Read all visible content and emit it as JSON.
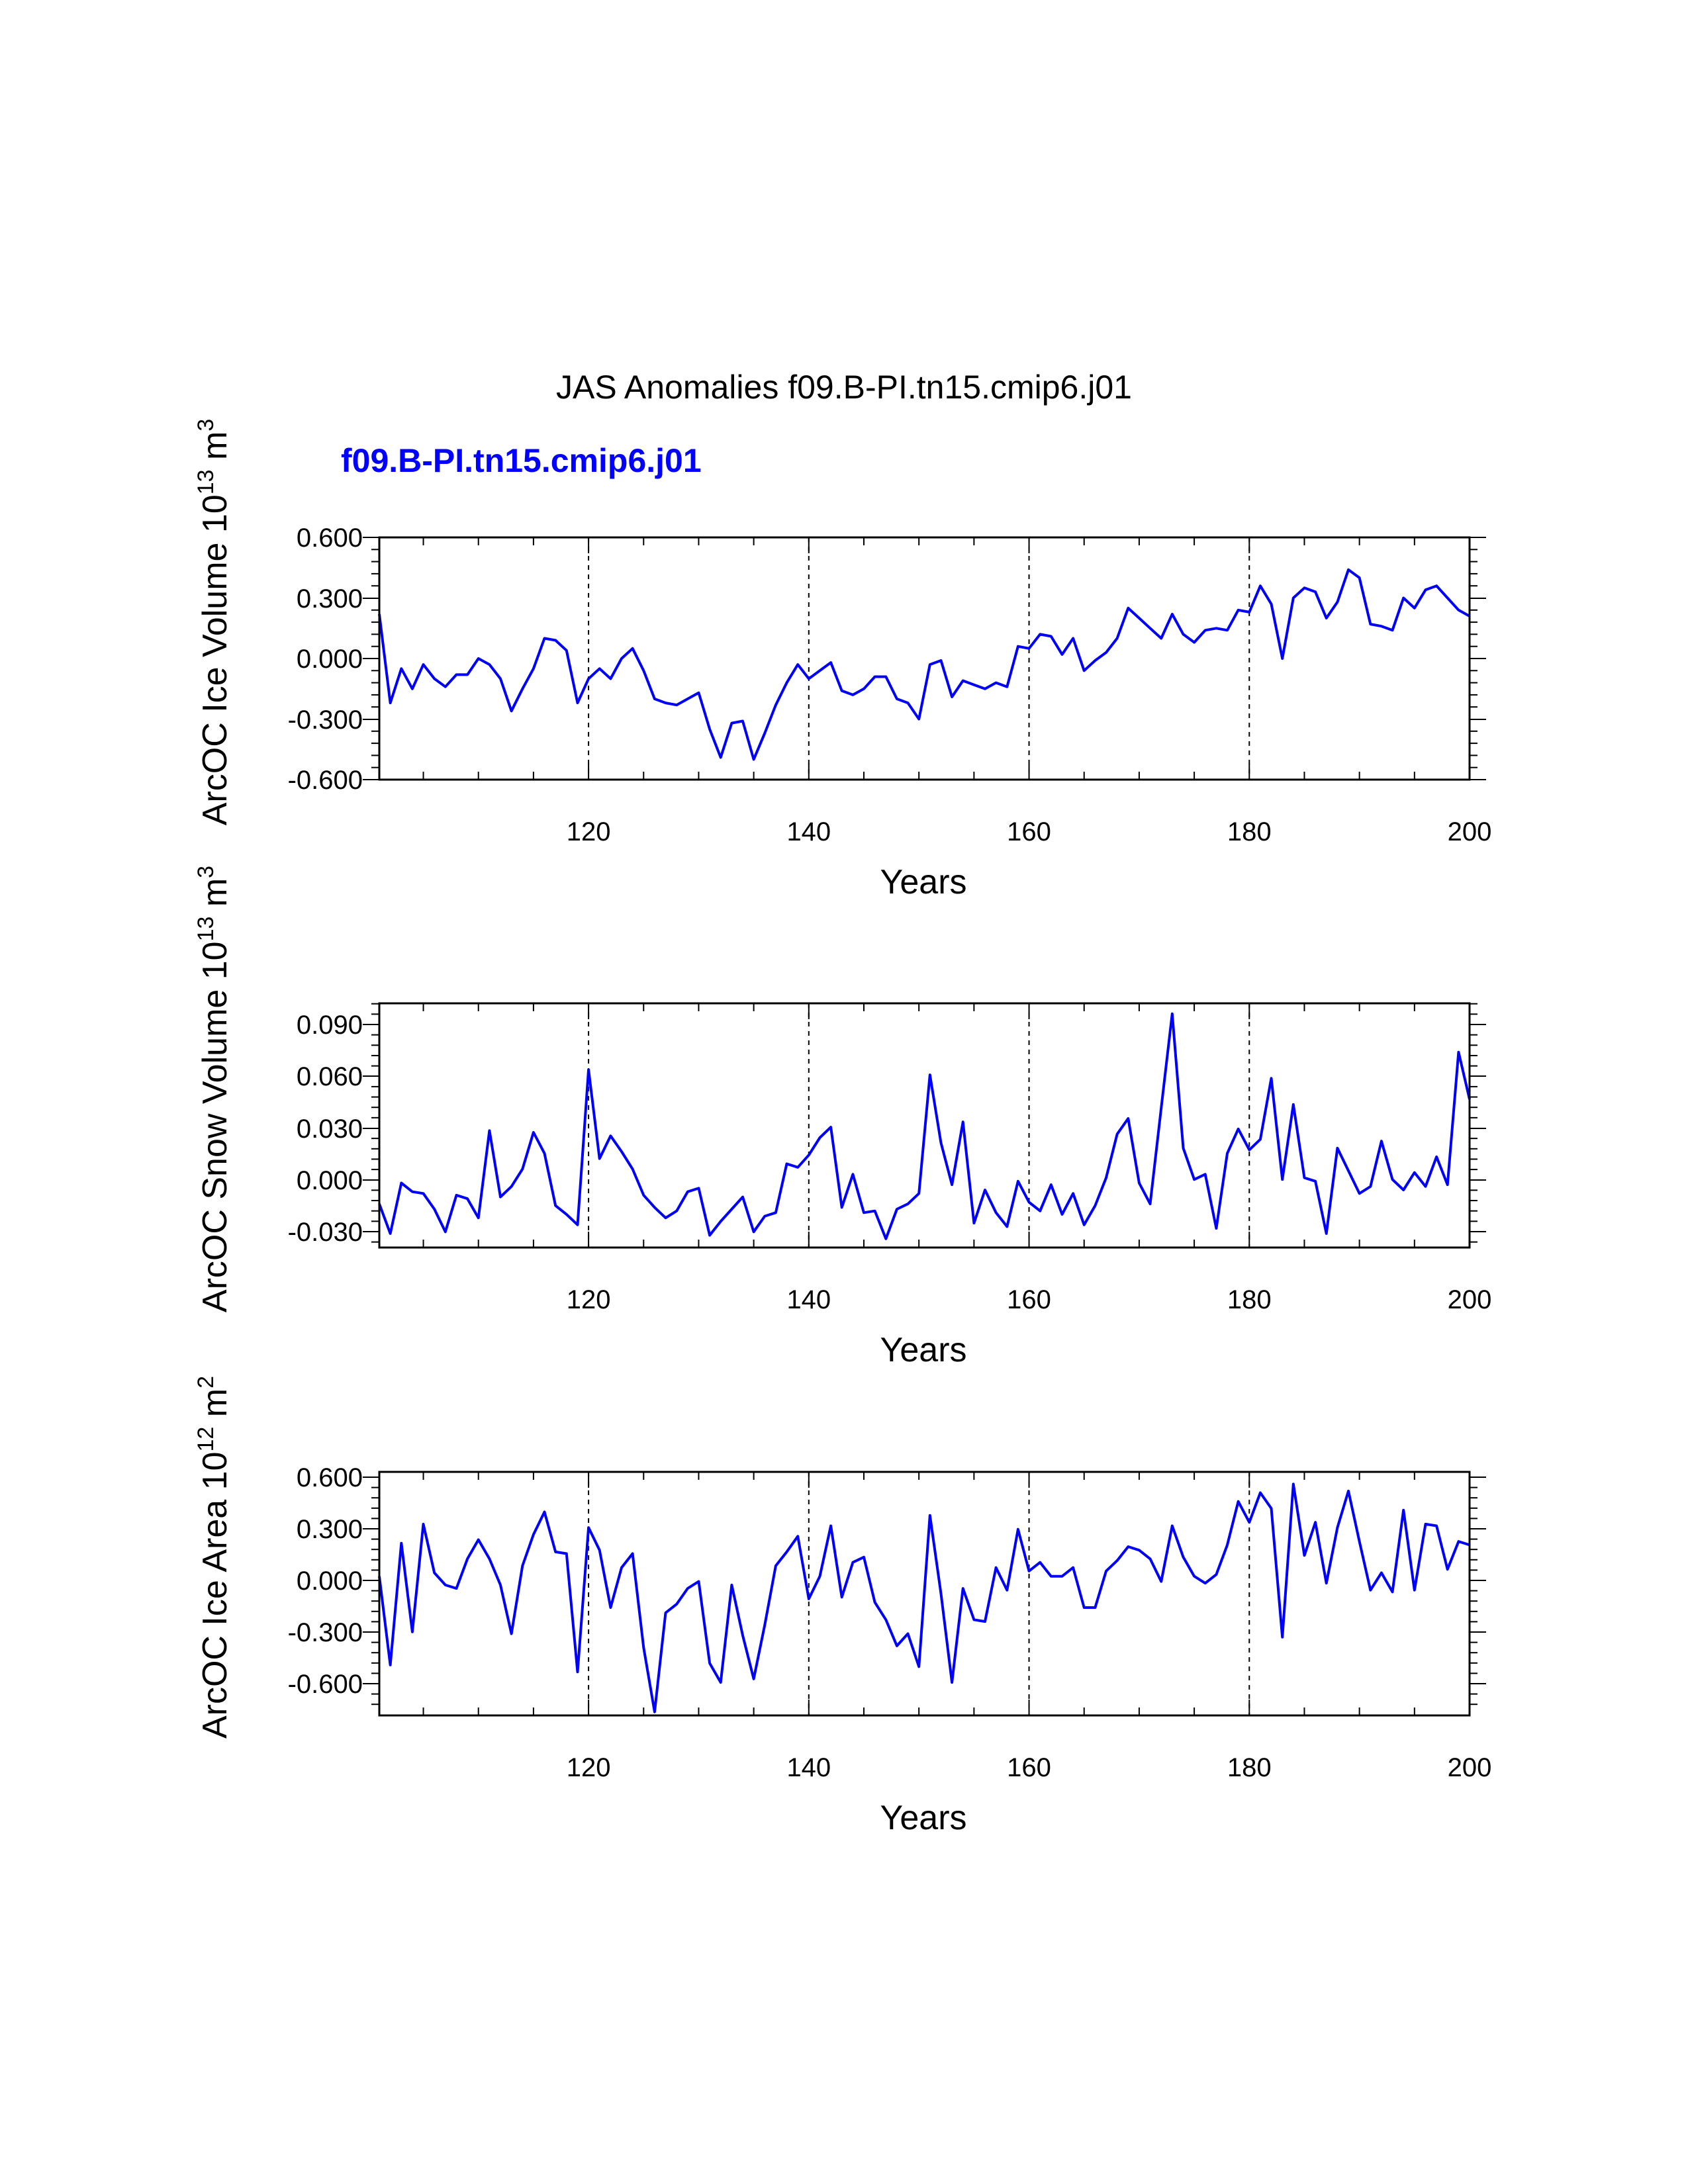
{
  "title": "JAS Anomalies f09.B-PI.tn15.cmip6.j01",
  "legend_label": "f09.B-PI.tn15.cmip6.j01",
  "colors": {
    "series": "#0000ff",
    "axis": "#000000",
    "reference_lines": "#000000"
  },
  "chart_data": [
    {
      "type": "line",
      "name": "ice-volume",
      "ylabel_main": "ArcOC Ice Volume 10",
      "ylabel_exp": "13",
      "ylabel_tail": " m",
      "ylabel_tail_exp": "3",
      "xlabel": "Years",
      "xlim": [
        101,
        200
      ],
      "ylim": [
        -0.6,
        0.6
      ],
      "xticks": [
        "120",
        "140",
        "160",
        "180",
        "200"
      ],
      "yticks": [
        "0.600",
        "0.300",
        "0.000",
        "-0.300",
        "-0.600"
      ],
      "reference_x": [
        120,
        140,
        160,
        180
      ],
      "series": [
        {
          "name": "f09.B-PI.tn15.cmip6.j01",
          "x_start": 101,
          "values": [
            0.22,
            -0.22,
            -0.05,
            -0.15,
            -0.03,
            -0.1,
            -0.14,
            -0.08,
            -0.08,
            0.0,
            -0.03,
            -0.1,
            -0.26,
            -0.15,
            -0.05,
            0.1,
            0.09,
            0.04,
            -0.22,
            -0.1,
            -0.05,
            -0.1,
            0.0,
            0.05,
            -0.06,
            -0.2,
            -0.22,
            -0.23,
            -0.2,
            -0.17,
            -0.35,
            -0.49,
            -0.32,
            -0.31,
            -0.5,
            -0.37,
            -0.23,
            -0.12,
            -0.03,
            -0.1,
            -0.06,
            -0.02,
            -0.16,
            -0.18,
            -0.15,
            -0.09,
            -0.09,
            -0.2,
            -0.22,
            -0.3,
            -0.03,
            -0.01,
            -0.19,
            -0.11,
            -0.13,
            -0.15,
            -0.12,
            -0.14,
            0.06,
            0.05,
            0.12,
            0.11,
            0.02,
            0.1,
            -0.06,
            -0.01,
            0.03,
            0.1,
            0.25,
            0.2,
            0.15,
            0.1,
            0.22,
            0.12,
            0.08,
            0.14,
            0.15,
            0.14,
            0.24,
            0.23,
            0.36,
            0.27,
            0.0,
            0.3,
            0.35,
            0.33,
            0.2,
            0.28,
            0.44,
            0.4,
            0.17,
            0.16,
            0.14,
            0.3,
            0.25,
            0.34,
            0.36,
            0.3,
            0.24,
            0.21
          ]
        }
      ]
    },
    {
      "type": "line",
      "name": "snow-volume",
      "ylabel_main": "ArcOC Snow Volume 10",
      "ylabel_exp": "13",
      "ylabel_tail": " m",
      "ylabel_tail_exp": "3",
      "xlabel": "Years",
      "xlim": [
        101,
        200
      ],
      "ylim": [
        -0.04,
        0.1
      ],
      "xticks": [
        "120",
        "140",
        "160",
        "180",
        "200"
      ],
      "yticks": [
        "0.090",
        "0.060",
        "0.030",
        "0.000",
        "-0.030"
      ],
      "reference_x": [
        120,
        140,
        160,
        180
      ],
      "series": [
        {
          "name": "f09.B-PI.tn15.cmip6.j01",
          "x_start": 101,
          "values": [
            -0.015,
            -0.032,
            -0.003,
            -0.008,
            -0.009,
            -0.018,
            -0.031,
            -0.01,
            -0.012,
            -0.023,
            0.027,
            -0.011,
            -0.005,
            0.005,
            0.026,
            0.014,
            -0.016,
            -0.021,
            -0.027,
            0.062,
            0.011,
            0.024,
            0.015,
            0.005,
            -0.01,
            -0.017,
            -0.023,
            -0.019,
            -0.008,
            -0.006,
            -0.033,
            -0.025,
            -0.018,
            -0.011,
            -0.031,
            -0.022,
            -0.02,
            0.008,
            0.006,
            0.013,
            0.023,
            0.029,
            -0.017,
            0.002,
            -0.02,
            -0.019,
            -0.035,
            -0.018,
            -0.015,
            -0.009,
            0.059,
            0.02,
            -0.004,
            0.032,
            -0.026,
            -0.007,
            -0.02,
            -0.028,
            -0.002,
            -0.014,
            -0.019,
            -0.004,
            -0.021,
            -0.009,
            -0.027,
            -0.016,
            0.0,
            0.025,
            0.034,
            -0.003,
            -0.015,
            0.04,
            0.094,
            0.017,
            -0.001,
            0.002,
            -0.029,
            0.014,
            0.028,
            0.016,
            0.022,
            0.057,
            -0.001,
            0.042,
            0.0,
            -0.002,
            -0.032,
            0.017,
            0.004,
            -0.009,
            -0.005,
            0.021,
            -0.001,
            -0.007,
            0.003,
            -0.005,
            0.012,
            -0.004,
            0.072,
            0.045
          ]
        }
      ]
    },
    {
      "type": "line",
      "name": "ice-area",
      "ylabel_main": "ArcOC Ice Area 10",
      "ylabel_exp": "12",
      "ylabel_tail": " m",
      "ylabel_tail_exp": "2",
      "xlabel": "Years",
      "xlim": [
        101,
        200
      ],
      "ylim": [
        -0.8,
        0.6
      ],
      "xticks": [
        "120",
        "140",
        "160",
        "180",
        "200"
      ],
      "yticks": [
        "0.600",
        "0.300",
        "0.000",
        "-0.300",
        "-0.600"
      ],
      "reference_x": [
        120,
        140,
        160,
        180
      ],
      "series": [
        {
          "name": "f09.B-PI.tn15.cmip6.j01",
          "x_start": 101,
          "values": [
            0.0,
            -0.51,
            0.19,
            -0.32,
            0.3,
            0.02,
            -0.05,
            -0.07,
            0.1,
            0.21,
            0.1,
            -0.05,
            -0.33,
            0.06,
            0.24,
            0.37,
            0.14,
            0.13,
            -0.55,
            0.28,
            0.15,
            -0.18,
            0.05,
            0.13,
            -0.41,
            -0.78,
            -0.21,
            -0.16,
            -0.07,
            -0.03,
            -0.5,
            -0.61,
            -0.05,
            -0.34,
            -0.59,
            -0.28,
            0.06,
            0.14,
            0.23,
            -0.13,
            0.0,
            0.29,
            -0.12,
            0.08,
            0.11,
            -0.15,
            -0.25,
            -0.4,
            -0.33,
            -0.52,
            0.35,
            -0.1,
            -0.61,
            -0.07,
            -0.25,
            -0.26,
            0.05,
            -0.08,
            0.27,
            0.03,
            0.08,
            0.0,
            0.0,
            0.05,
            -0.18,
            -0.18,
            0.03,
            0.09,
            0.17,
            0.15,
            0.1,
            -0.03,
            0.29,
            0.11,
            0.0,
            -0.04,
            0.01,
            0.18,
            0.43,
            0.31,
            0.48,
            0.39,
            -0.35,
            0.53,
            0.12,
            0.31,
            -0.04,
            0.28,
            0.49,
            0.2,
            -0.08,
            0.02,
            -0.09,
            0.38,
            -0.08,
            0.3,
            0.29,
            0.04,
            0.2,
            0.18
          ]
        }
      ]
    }
  ]
}
